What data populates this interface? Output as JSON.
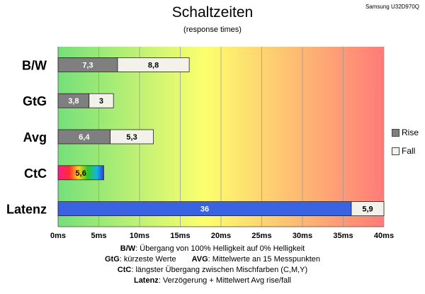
{
  "header": {
    "title": "Schaltzeiten",
    "subtitle": "(response times)",
    "device": "Samsung U32D970Q"
  },
  "colors": {
    "rise": "#7f7f7f",
    "fall": "#f2f2ea",
    "latenz_rise": "#3a63e3",
    "gradient_stops": [
      "#74e07a",
      "#fdff6e",
      "#ff7b78"
    ]
  },
  "chart_data": {
    "type": "bar",
    "orientation": "horizontal",
    "stacked": true,
    "categories": [
      "B/W",
      "GtG",
      "Avg",
      "CtC",
      "Latenz"
    ],
    "series": [
      {
        "name": "Rise",
        "values": [
          7.3,
          3.8,
          6.4,
          5.6,
          36
        ]
      },
      {
        "name": "Fall",
        "values": [
          8.8,
          3,
          5.3,
          null,
          5.9
        ]
      }
    ],
    "data_labels": {
      "Rise": [
        "7,3",
        "3,8",
        "6,4",
        "5,6",
        "36"
      ],
      "Fall": [
        "8,8",
        "3",
        "5,3",
        "",
        "5,9"
      ]
    },
    "xlim": [
      0,
      40
    ],
    "x_ticks": [
      0,
      5,
      10,
      15,
      20,
      25,
      30,
      35,
      40
    ],
    "x_tick_labels": [
      "0ms",
      "5ms",
      "10ms",
      "15ms",
      "20ms",
      "25ms",
      "30ms",
      "35ms",
      "40ms"
    ],
    "grid": true,
    "legend_position": "right",
    "xlabel": "",
    "ylabel": ""
  },
  "footnotes": [
    {
      "key": "B/W",
      "text": ": Übergang von 100% Helligkeit auf 0% Helligkeit"
    },
    {
      "key": "GtG",
      "text": ": kürzeste Werte",
      "key2": "AVG",
      "text2": ": Mittelwerte an 15 Messpunkten"
    },
    {
      "key": "CtC",
      "text": ": längster Übergang zwischen Mischfarben (C,M,Y)"
    },
    {
      "key": "Latenz",
      "text": ": Verzögerung + Mittelwert Avg rise/fall"
    }
  ]
}
